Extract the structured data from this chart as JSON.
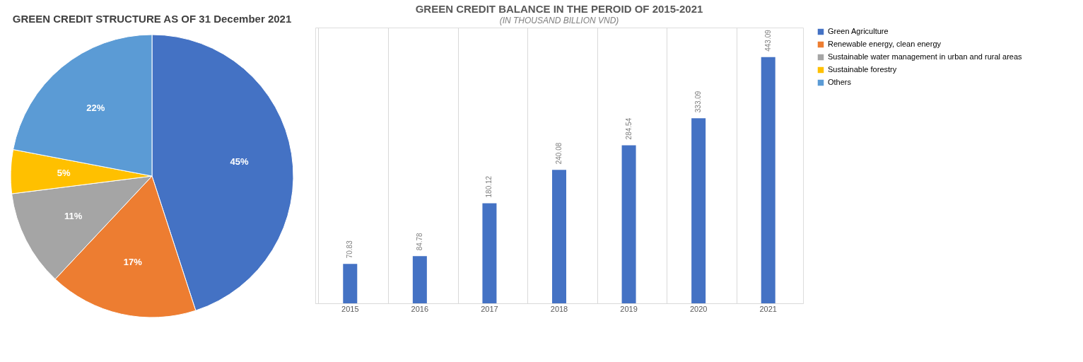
{
  "chart_data": [
    {
      "type": "pie",
      "title": "GREEN CREDIT STRUCTURE AS OF 31 December 2021",
      "categories": [
        "Green Agriculture",
        "Renewable energy, clean energy",
        "Sustainable water management in urban and rural areas",
        "Sustainable forestry",
        "Others"
      ],
      "values": [
        45,
        17,
        11,
        5,
        22
      ],
      "colors": [
        "#4472c4",
        "#ed7d31",
        "#a5a5a5",
        "#ffc000",
        "#5b9bd5"
      ],
      "value_labels": [
        "45%",
        "17%",
        "11%",
        "5%",
        "22%"
      ],
      "legend": "right"
    },
    {
      "type": "bar",
      "title": "GREEN CREDIT BALANCE IN THE PEROID OF 2015-2021",
      "subtitle": "(IN THOUSAND BILLION VND)",
      "categories": [
        "2015",
        "2016",
        "2017",
        "2018",
        "2019",
        "2020",
        "2021"
      ],
      "values": [
        70.83,
        84.78,
        180.12,
        240.08,
        284.54,
        333.09,
        443.09
      ],
      "color": "#4472c4",
      "data_labels": true,
      "grid": "x"
    }
  ]
}
